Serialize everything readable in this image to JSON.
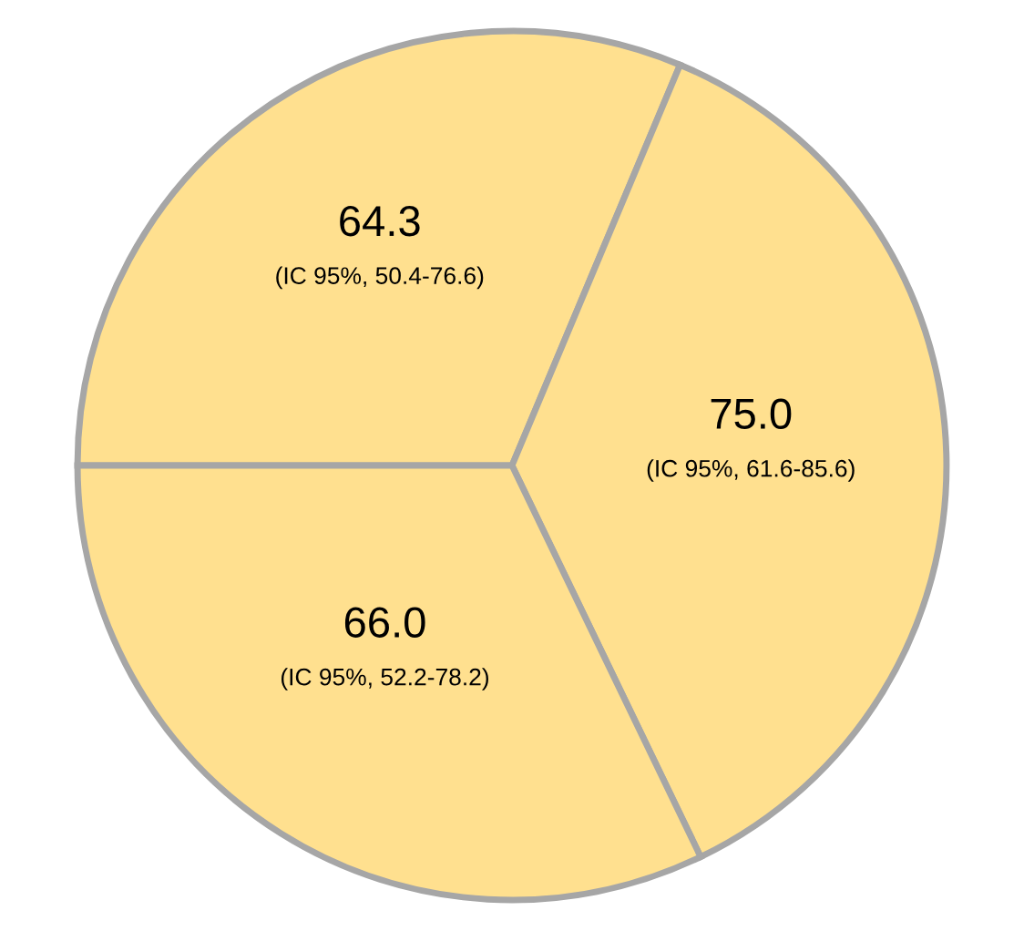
{
  "chart_data": {
    "type": "pie",
    "categories": [
      null,
      null,
      null
    ],
    "values": [
      64.3,
      75.0,
      66.0
    ],
    "colors": [
      "#ffe08f",
      "#ffe08f",
      "#ffe08f"
    ],
    "value_labels": [
      "64.3",
      "75.0",
      "66.0"
    ],
    "annotations": [
      "(IC 95%, 50.4-76.6)",
      "(IC 95%, 61.6-85.6)",
      "(IC 95%, 52.2-78.2)"
    ],
    "legend": false
  }
}
